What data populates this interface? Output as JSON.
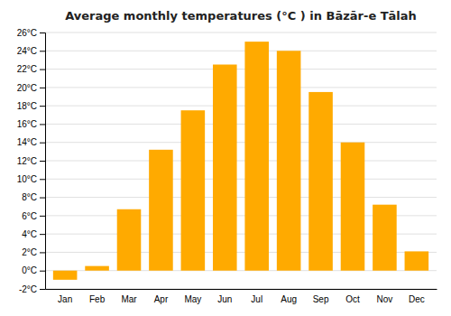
{
  "chart_data": {
    "type": "bar",
    "title": "Average monthly temperatures (°C ) in Bāzār-e Tālah",
    "categories": [
      "Jan",
      "Feb",
      "Mar",
      "Apr",
      "May",
      "Jun",
      "Jul",
      "Aug",
      "Sep",
      "Oct",
      "Nov",
      "Dec"
    ],
    "values": [
      -1.0,
      0.5,
      6.7,
      13.2,
      17.5,
      22.5,
      25.0,
      24.0,
      19.5,
      14.0,
      7.2,
      2.1
    ],
    "color": "#FFAA00",
    "ylim": [
      -2,
      26
    ],
    "yticks": [
      {
        "value": -2,
        "label": "-2°C"
      },
      {
        "value": 0,
        "label": "0°C"
      },
      {
        "value": 2,
        "label": "2°C"
      },
      {
        "value": 4,
        "label": "4°C"
      },
      {
        "value": 6,
        "label": "6°C"
      },
      {
        "value": 8,
        "label": "8°C"
      },
      {
        "value": 10,
        "label": "10°C"
      },
      {
        "value": 12,
        "label": "12°C"
      },
      {
        "value": 14,
        "label": "14°C"
      },
      {
        "value": 16,
        "label": "16°C"
      },
      {
        "value": 18,
        "label": "18°C"
      },
      {
        "value": 20,
        "label": "20°C"
      },
      {
        "value": 22,
        "label": "22°C"
      },
      {
        "value": 24,
        "label": "24°C"
      },
      {
        "value": 26,
        "label": "26°C"
      }
    ],
    "grid": true
  }
}
